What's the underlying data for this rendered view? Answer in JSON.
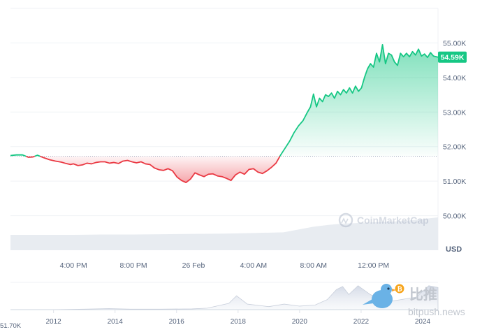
{
  "chart_data": [
    {
      "type": "area",
      "title": "",
      "xlabel": "",
      "ylabel": "USD",
      "currency_label": "USD",
      "ylim": [
        49000,
        56000
      ],
      "y_ticks": [
        {
          "value": 55000,
          "label": "55.00K"
        },
        {
          "value": 54000,
          "label": "54.00K"
        },
        {
          "value": 53000,
          "label": "53.00K"
        },
        {
          "value": 52000,
          "label": "52.00K"
        },
        {
          "value": 51000,
          "label": "51.00K"
        },
        {
          "value": 50000,
          "label": "50.00K"
        }
      ],
      "x_ticks": [
        "4:00 PM",
        "8:00 PM",
        "26 Feb",
        "4:00 AM",
        "8:00 AM",
        "12:00 PM"
      ],
      "x_tick_hours": [
        0,
        4,
        8,
        12,
        16,
        20
      ],
      "x_range_hours": [
        -4.2,
        24.3
      ],
      "reference_price": 51720,
      "current_price": 54590,
      "current_price_label": "54.59K",
      "colors": {
        "up": "#16c784",
        "down": "#ea3943",
        "volume": "#e8ecf1",
        "grid": "#eff2f5",
        "reference": "#a6b0c3"
      },
      "grid": true,
      "series": [
        {
          "x_hours": [
            -4.2,
            -3.8,
            -3.4,
            -3.0,
            -2.7,
            -2.4,
            -2.0,
            -1.6,
            -1.2,
            -0.8,
            -0.5,
            -0.2,
            0.0,
            0.3,
            0.6,
            0.9,
            1.2,
            1.5,
            1.8,
            2.1,
            2.4,
            2.7,
            3.0,
            3.3,
            3.6,
            3.9,
            4.2,
            4.5,
            4.8,
            5.1,
            5.4,
            5.7,
            6.0,
            6.3,
            6.6,
            6.9,
            7.2,
            7.5,
            7.8,
            8.1,
            8.4,
            8.7,
            9.0,
            9.3,
            9.6,
            9.9,
            10.2,
            10.5,
            10.8,
            11.1,
            11.4,
            11.7,
            12.0,
            12.3,
            12.6,
            12.9,
            13.2,
            13.5,
            13.8,
            14.1,
            14.4,
            14.7,
            15.0,
            15.3,
            15.6,
            15.8,
            16.0,
            16.2,
            16.4,
            16.6,
            16.8,
            17.0,
            17.2,
            17.4,
            17.6,
            17.8,
            18.0,
            18.2,
            18.4,
            18.6,
            18.8,
            19.0,
            19.2,
            19.4,
            19.6,
            19.8,
            20.0,
            20.2,
            20.4,
            20.6,
            20.8,
            21.0,
            21.2,
            21.4,
            21.6,
            21.8,
            22.0,
            22.2,
            22.4,
            22.6,
            22.8,
            23.0,
            23.2,
            23.4,
            23.6,
            23.8,
            24.0,
            24.3
          ],
          "values": [
            51740,
            51760,
            51760,
            51690,
            51700,
            51750,
            51680,
            51620,
            51580,
            51550,
            51510,
            51480,
            51500,
            51450,
            51470,
            51520,
            51500,
            51540,
            51560,
            51560,
            51520,
            51540,
            51510,
            51580,
            51600,
            51560,
            51530,
            51560,
            51500,
            51480,
            51380,
            51330,
            51310,
            51360,
            51300,
            51120,
            51020,
            50960,
            51060,
            51240,
            51180,
            51130,
            51200,
            51210,
            51150,
            51130,
            51080,
            51020,
            51180,
            51260,
            51200,
            51340,
            51360,
            51260,
            51220,
            51300,
            51400,
            51520,
            51750,
            51950,
            52150,
            52400,
            52600,
            52750,
            53000,
            53150,
            53520,
            53150,
            53400,
            53300,
            53500,
            53450,
            53550,
            53400,
            53600,
            53500,
            53650,
            53550,
            53700,
            53550,
            53750,
            53600,
            53700,
            54000,
            54250,
            54400,
            54300,
            54700,
            54450,
            54950,
            54400,
            54700,
            54650,
            54450,
            54350,
            54700,
            54600,
            54700,
            54600,
            54750,
            54650,
            54820,
            54620,
            54680,
            54580,
            54720,
            54620,
            54590
          ]
        }
      ],
      "volume": {
        "x_hours": [
          -4.2,
          -2,
          0,
          2,
          4,
          6,
          8,
          10,
          12,
          14,
          16,
          17,
          18,
          20,
          22,
          24.3
        ],
        "values": [
          0.44,
          0.44,
          0.44,
          0.45,
          0.45,
          0.46,
          0.47,
          0.48,
          0.5,
          0.52,
          0.7,
          0.76,
          0.8,
          0.84,
          0.88,
          1.0
        ]
      }
    },
    {
      "type": "area",
      "title": "",
      "xlabel": "",
      "ylabel": "",
      "x_ticks": [
        "2012",
        "2014",
        "2016",
        "2018",
        "2020",
        "2022",
        "2024"
      ],
      "x_tick_years": [
        2012,
        2014,
        2016,
        2018,
        2020,
        2022,
        2024
      ],
      "x_range_years": [
        2010.6,
        2024.5
      ],
      "y_min_label": "51.70K",
      "values_years": [
        2010.6,
        2012.0,
        2013.0,
        2013.8,
        2014.5,
        2015.5,
        2016.5,
        2017.0,
        2017.7,
        2017.95,
        2018.3,
        2019.0,
        2019.5,
        2020.0,
        2020.5,
        2020.9,
        2021.2,
        2021.4,
        2021.6,
        2021.9,
        2022.3,
        2022.8,
        2023.3,
        2023.8,
        2024.2,
        2024.5
      ],
      "values": [
        0.0,
        0.0,
        0.02,
        0.04,
        0.02,
        0.02,
        0.03,
        0.06,
        0.25,
        0.55,
        0.22,
        0.12,
        0.22,
        0.14,
        0.18,
        0.4,
        0.8,
        0.92,
        0.6,
        0.95,
        0.6,
        0.3,
        0.4,
        0.5,
        0.95,
        0.88
      ]
    }
  ],
  "watermarks": {
    "chart_brand": "CoinMarketCap",
    "site_chinese": "比推",
    "site_url": "bitpush.news"
  }
}
